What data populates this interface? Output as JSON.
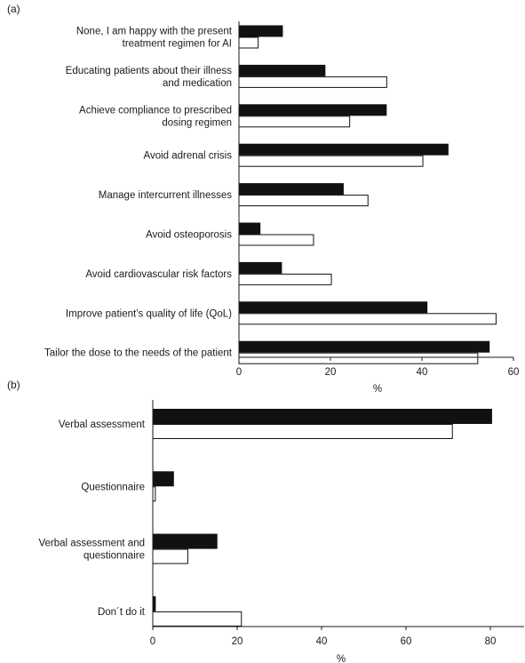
{
  "chart_data": [
    {
      "type": "bar",
      "orientation": "horizontal",
      "panel_label": "(a)",
      "categories": [
        [
          "None, I am happy with the present",
          "treatment regimen for AI"
        ],
        [
          "Educating patients about their illness",
          "and medication"
        ],
        [
          "Achieve compliance to prescribed",
          "dosing regimen"
        ],
        [
          "Avoid adrenal crisis"
        ],
        [
          "Manage intercurrent illnesses"
        ],
        [
          "Avoid osteoporosis"
        ],
        [
          "Avoid cardiovascular risk factors"
        ],
        [
          "Improve patient’s quality of life (QoL)"
        ],
        [
          "Tailor the dose to the needs of the patient"
        ]
      ],
      "series": [
        {
          "fill": "#111111",
          "values": [
            9.5,
            18.8,
            32.2,
            45.7,
            22.8,
            4.6,
            9.3,
            41.1,
            54.7
          ]
        },
        {
          "fill": "#ffffff",
          "values": [
            4.2,
            32.3,
            24.2,
            40.2,
            28.2,
            16.3,
            20.2,
            56.2,
            52.2
          ]
        }
      ],
      "xlim": [
        0,
        60
      ],
      "xticks": [
        0,
        20,
        40,
        60
      ],
      "xlabel": "%"
    },
    {
      "type": "bar",
      "orientation": "horizontal",
      "panel_label": "(b)",
      "categories": [
        [
          "Verbal assessment"
        ],
        [
          "Questionnaire"
        ],
        [
          "Verbal assessment and",
          "questionnaire"
        ],
        [
          "Don´t do it"
        ]
      ],
      "series": [
        {
          "fill": "#111111",
          "values": [
            80.3,
            4.9,
            15.2,
            0.6
          ]
        },
        {
          "fill": "#ffffff",
          "values": [
            71.0,
            0.6,
            8.3,
            21.0
          ]
        }
      ],
      "xlim": [
        0,
        88
      ],
      "xticks": [
        0,
        20,
        40,
        60,
        80
      ],
      "xlabel": "%"
    }
  ]
}
